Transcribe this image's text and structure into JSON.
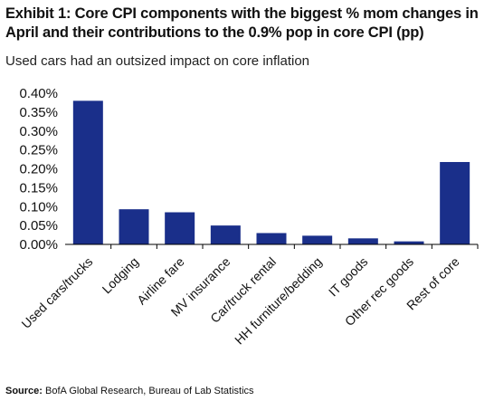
{
  "header": {
    "title": "Exhibit 1: Core CPI components with the biggest % mom changes in April and their contributions to the 0.9% pop in core CPI (pp)",
    "subtitle": "Used cars had an outsized impact on core inflation"
  },
  "footer": {
    "source_label": "Source:",
    "source_text": "BofA Global Research, Bureau of Lab Statistics"
  },
  "colors": {
    "bar": "#1a2f8a",
    "axis": "#000000"
  },
  "chart_data": {
    "type": "bar",
    "title": "Exhibit 1: Core CPI components with the biggest % mom changes in April and their contributions to the 0.9% pop in core CPI (pp)",
    "subtitle": "Used cars had an outsized impact on core inflation",
    "xlabel": "",
    "ylabel": "",
    "categories": [
      "Used cars/trucks",
      "Lodging",
      "Airline fare",
      "MV insurance",
      "Car/truck rental",
      "HH furniture/bedding",
      "IT goods",
      "Other rec goods",
      "Rest of core"
    ],
    "values": [
      0.38,
      0.093,
      0.085,
      0.05,
      0.03,
      0.023,
      0.016,
      0.008,
      0.218
    ],
    "ylim": [
      0,
      0.4
    ],
    "yticks": [
      0,
      0.05,
      0.1,
      0.15,
      0.2,
      0.25,
      0.3,
      0.35,
      0.4
    ],
    "ytick_labels": [
      "0.00%",
      "0.05%",
      "0.10%",
      "0.15%",
      "0.20%",
      "0.25%",
      "0.30%",
      "0.35%",
      "0.40%"
    ],
    "grid": false,
    "legend": "none"
  }
}
